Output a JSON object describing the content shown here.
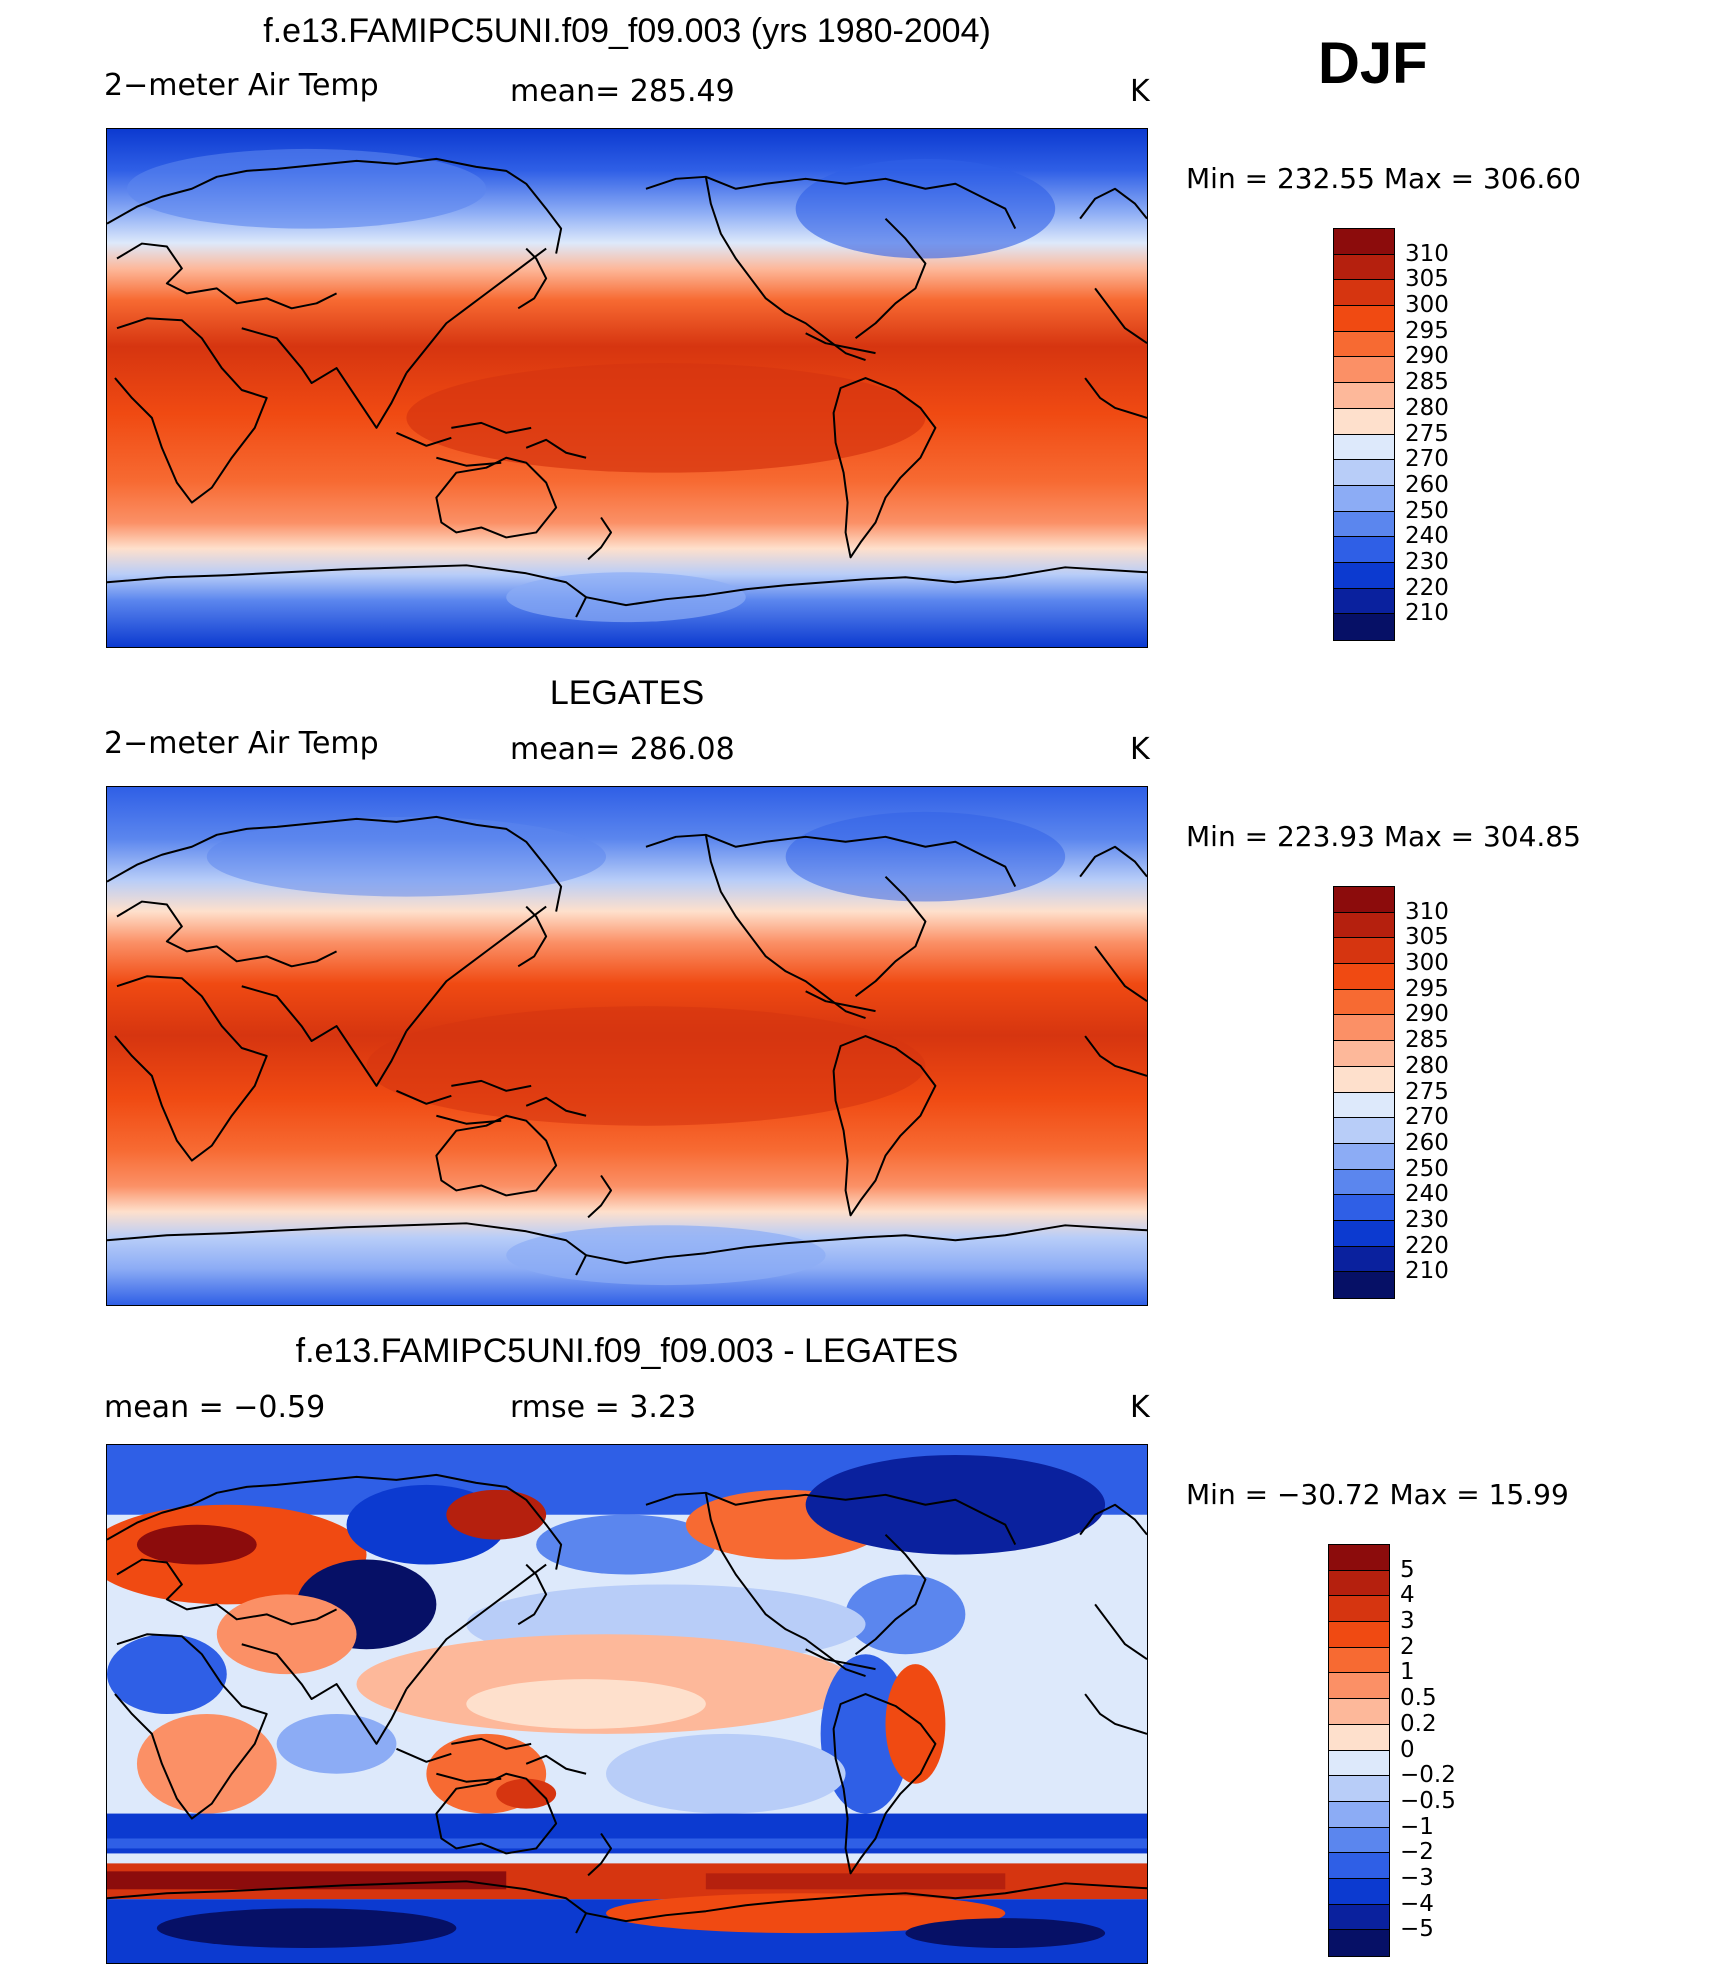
{
  "season": "DJF",
  "panels": [
    {
      "title": "f.e13.FAMIPC5UNI.f09_f09.003 (yrs 1980-2004)",
      "left_label": "2−meter Air Temp",
      "center_label": "mean=  285.49",
      "units": "K",
      "minmax": "Min  =  232.55  Max  =  306.60",
      "colorbar": {
        "labels": [
          "310",
          "305",
          "300",
          "295",
          "290",
          "285",
          "280",
          "275",
          "270",
          "260",
          "250",
          "240",
          "230",
          "220",
          "210"
        ],
        "colors": [
          "#8c0c0c",
          "#b5200e",
          "#d63510",
          "#f04a12",
          "#f76a32",
          "#fb9066",
          "#fdb89a",
          "#fee0cc",
          "#dde9fb",
          "#b8cdf8",
          "#8cacf5",
          "#5b86ee",
          "#2f5fe6",
          "#0c3ad0",
          "#0a219e",
          "#061066"
        ]
      }
    },
    {
      "title": "LEGATES",
      "left_label": "2−meter Air Temp",
      "center_label": "mean=  286.08",
      "units": "K",
      "minmax": "Min  =  223.93  Max  =  304.85",
      "colorbar": {
        "labels": [
          "310",
          "305",
          "300",
          "295",
          "290",
          "285",
          "280",
          "275",
          "270",
          "260",
          "250",
          "240",
          "230",
          "220",
          "210"
        ],
        "colors": [
          "#8c0c0c",
          "#b5200e",
          "#d63510",
          "#f04a12",
          "#f76a32",
          "#fb9066",
          "#fdb89a",
          "#fee0cc",
          "#dde9fb",
          "#b8cdf8",
          "#8cacf5",
          "#5b86ee",
          "#2f5fe6",
          "#0c3ad0",
          "#0a219e",
          "#061066"
        ]
      }
    },
    {
      "title": "f.e13.FAMIPC5UNI.f09_f09.003 - LEGATES",
      "left_label": "mean  =     −0.59",
      "center_label": "rmse  =       3.23",
      "units": "K",
      "minmax": "Min  =  −30.72  Max  =      15.99",
      "colorbar": {
        "labels": [
          "5",
          "4",
          "3",
          "2",
          "1",
          "0.5",
          "0.2",
          "0",
          "−0.2",
          "−0.5",
          "−1",
          "−2",
          "−3",
          "−4",
          "−5"
        ],
        "colors": [
          "#8c0c0c",
          "#b5200e",
          "#d63510",
          "#f04a12",
          "#f76a32",
          "#fb9066",
          "#fdb89a",
          "#fee0cc",
          "#dde9fb",
          "#b8cdf8",
          "#8cacf5",
          "#5b86ee",
          "#2f5fe6",
          "#0c3ad0",
          "#0a219e",
          "#061066"
        ]
      }
    }
  ]
}
